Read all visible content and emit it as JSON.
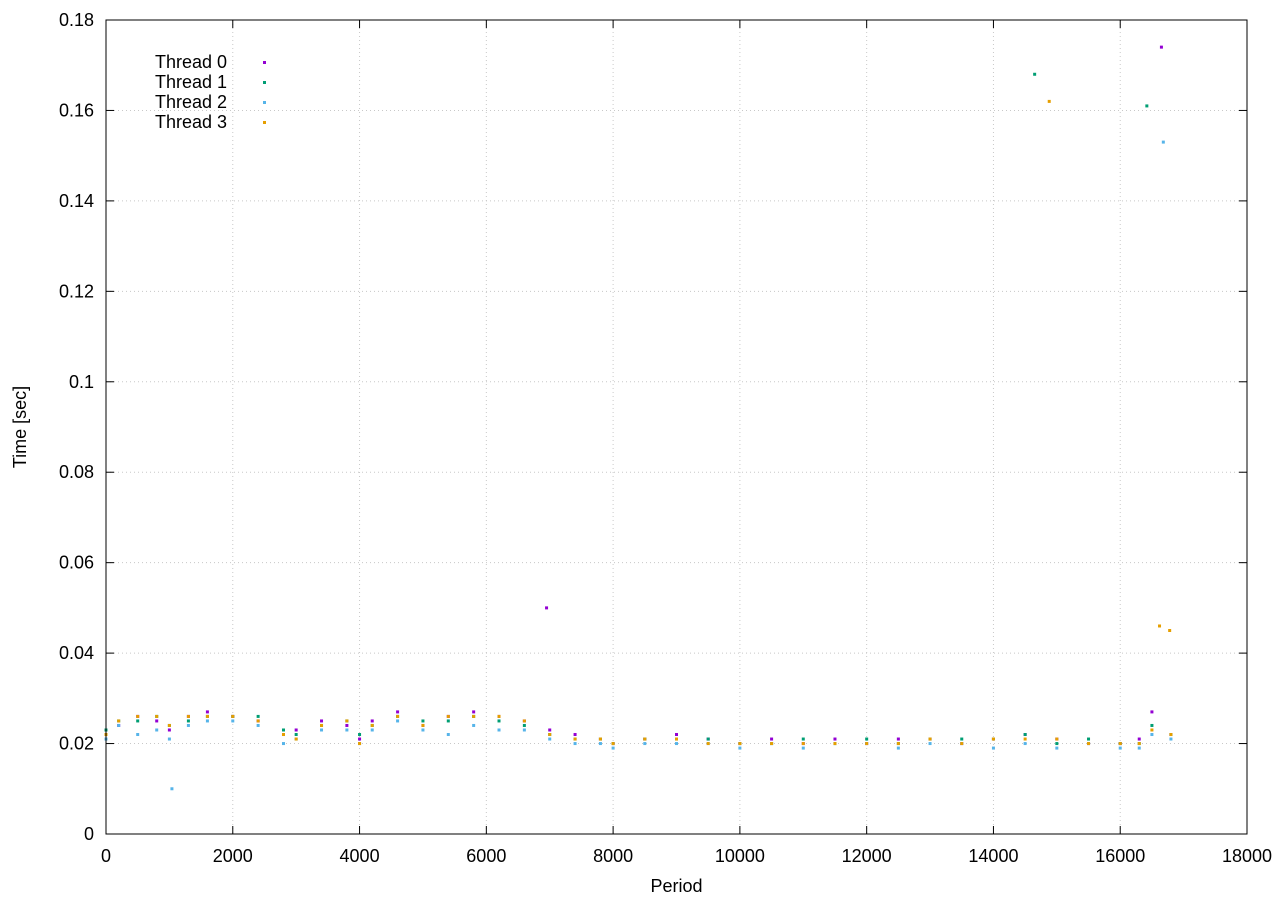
{
  "chart_data": {
    "type": "scatter",
    "title": "",
    "xlabel": "Period",
    "ylabel": "Time [sec]",
    "xlim": [
      0,
      18000
    ],
    "ylim": [
      0,
      0.18
    ],
    "x_ticks": [
      0,
      2000,
      4000,
      6000,
      8000,
      10000,
      12000,
      14000,
      16000,
      18000
    ],
    "x_tick_labels": [
      "0",
      "2000",
      "4000",
      "6000",
      "8000",
      "10000",
      "12000",
      "14000",
      "16000",
      "18000"
    ],
    "y_ticks": [
      0,
      0.02,
      0.04,
      0.06,
      0.08,
      0.1,
      0.12,
      0.14,
      0.16,
      0.18
    ],
    "y_tick_labels": [
      "0",
      "0.02",
      "0.04",
      "0.06",
      "0.08",
      "0.1",
      "0.12",
      "0.14",
      "0.16",
      "0.18"
    ],
    "grid": true,
    "legend_position": "top-left",
    "series": [
      {
        "name": "Thread 0",
        "color": "#9400d3",
        "x": [
          0,
          200,
          500,
          800,
          1000,
          1300,
          1600,
          2000,
          2400,
          2800,
          3000,
          3400,
          3800,
          4000,
          4200,
          4600,
          5000,
          5400,
          5800,
          6200,
          6600,
          7000,
          7400,
          7800,
          8000,
          8500,
          9000,
          9500,
          10000,
          10500,
          11000,
          11500,
          12000,
          12500,
          13000,
          13500,
          14000,
          14500,
          15000,
          15500,
          16000,
          16300,
          16500,
          16800
        ],
        "y": [
          0.022,
          0.024,
          0.026,
          0.025,
          0.023,
          0.026,
          0.027,
          0.026,
          0.025,
          0.022,
          0.023,
          0.025,
          0.024,
          0.021,
          0.025,
          0.027,
          0.024,
          0.026,
          0.027,
          0.026,
          0.025,
          0.023,
          0.022,
          0.021,
          0.02,
          0.021,
          0.022,
          0.021,
          0.02,
          0.021,
          0.02,
          0.021,
          0.02,
          0.021,
          0.021,
          0.02,
          0.021,
          0.022,
          0.021,
          0.02,
          0.02,
          0.021,
          0.027,
          0.022
        ],
        "outliers_x": [
          16650,
          6950
        ],
        "outliers_y": [
          0.174,
          0.05
        ]
      },
      {
        "name": "Thread 1",
        "color": "#009e73",
        "x": [
          0,
          200,
          500,
          800,
          1000,
          1300,
          1600,
          2000,
          2400,
          2800,
          3000,
          3400,
          3800,
          4000,
          4200,
          4600,
          5000,
          5400,
          5800,
          6200,
          6600,
          7000,
          7400,
          7800,
          8000,
          8500,
          9000,
          9500,
          10000,
          10500,
          11000,
          11500,
          12000,
          12500,
          13000,
          13500,
          14000,
          14500,
          15000,
          15500,
          16000,
          16300,
          16500,
          16800
        ],
        "y": [
          0.023,
          0.025,
          0.025,
          0.026,
          0.024,
          0.025,
          0.026,
          0.026,
          0.026,
          0.023,
          0.022,
          0.024,
          0.025,
          0.022,
          0.024,
          0.026,
          0.025,
          0.025,
          0.026,
          0.025,
          0.024,
          0.022,
          0.021,
          0.021,
          0.02,
          0.021,
          0.021,
          0.021,
          0.02,
          0.02,
          0.021,
          0.02,
          0.021,
          0.02,
          0.021,
          0.021,
          0.021,
          0.022,
          0.02,
          0.021,
          0.02,
          0.02,
          0.024,
          0.022
        ],
        "outliers_x": [
          14650,
          16420
        ],
        "outliers_y": [
          0.168,
          0.161
        ]
      },
      {
        "name": "Thread 2",
        "color": "#56b4e9",
        "x": [
          0,
          200,
          500,
          800,
          1000,
          1300,
          1600,
          2000,
          2400,
          2800,
          3000,
          3400,
          3800,
          4000,
          4200,
          4600,
          5000,
          5400,
          5800,
          6200,
          6600,
          7000,
          7400,
          7800,
          8000,
          8500,
          9000,
          9500,
          10000,
          10500,
          11000,
          11500,
          12000,
          12500,
          13000,
          13500,
          14000,
          14500,
          15000,
          15500,
          16000,
          16300,
          16500,
          16800
        ],
        "y": [
          0.021,
          0.024,
          0.022,
          0.023,
          0.021,
          0.024,
          0.025,
          0.025,
          0.024,
          0.02,
          0.021,
          0.023,
          0.023,
          0.02,
          0.023,
          0.025,
          0.023,
          0.022,
          0.024,
          0.023,
          0.023,
          0.021,
          0.02,
          0.02,
          0.019,
          0.02,
          0.02,
          0.02,
          0.019,
          0.02,
          0.019,
          0.02,
          0.02,
          0.019,
          0.02,
          0.02,
          0.019,
          0.02,
          0.019,
          0.02,
          0.019,
          0.019,
          0.022,
          0.021
        ],
        "outliers_x": [
          16680,
          1040
        ],
        "outliers_y": [
          0.153,
          0.01
        ]
      },
      {
        "name": "Thread 3",
        "color": "#e69f00",
        "x": [
          0,
          200,
          500,
          800,
          1000,
          1300,
          1600,
          2000,
          2400,
          2800,
          3000,
          3400,
          3800,
          4000,
          4200,
          4600,
          5000,
          5400,
          5800,
          6200,
          6600,
          7000,
          7400,
          7800,
          8000,
          8500,
          9000,
          9500,
          10000,
          10500,
          11000,
          11500,
          12000,
          12500,
          13000,
          13500,
          14000,
          14500,
          15000,
          15500,
          16000,
          16300,
          16500,
          16800
        ],
        "y": [
          0.022,
          0.025,
          0.026,
          0.026,
          0.024,
          0.026,
          0.026,
          0.026,
          0.025,
          0.022,
          0.021,
          0.024,
          0.025,
          0.02,
          0.024,
          0.026,
          0.024,
          0.026,
          0.026,
          0.026,
          0.025,
          0.022,
          0.021,
          0.021,
          0.02,
          0.021,
          0.021,
          0.02,
          0.02,
          0.02,
          0.02,
          0.02,
          0.02,
          0.02,
          0.021,
          0.02,
          0.021,
          0.021,
          0.021,
          0.02,
          0.02,
          0.02,
          0.023,
          0.022
        ],
        "outliers_x": [
          14880,
          16620,
          16780
        ],
        "outliers_y": [
          0.162,
          0.046,
          0.045
        ]
      }
    ]
  }
}
